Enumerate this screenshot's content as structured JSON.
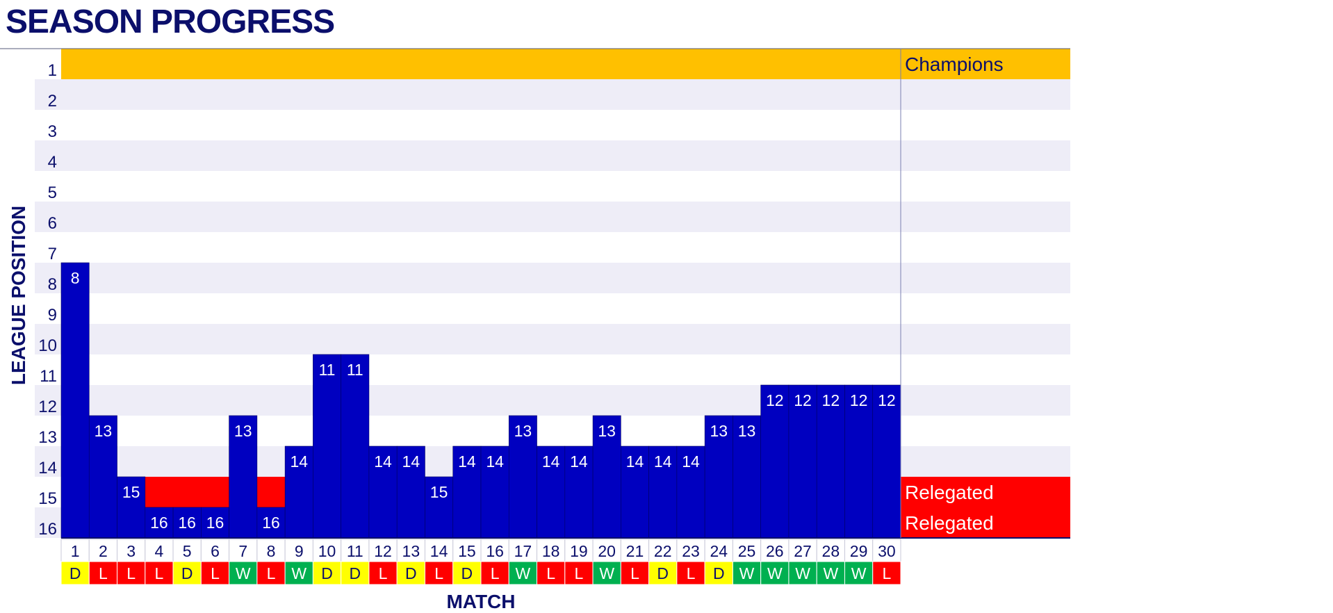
{
  "title": "SEASON PROGRESS",
  "chart_data": {
    "type": "bar",
    "ylabel": "LEAGUE POSITION",
    "xlabel": "MATCH",
    "ylim": [
      16,
      1
    ],
    "y_ticks": [
      "1",
      "2",
      "3",
      "4",
      "5",
      "6",
      "7",
      "8",
      "9",
      "10",
      "11",
      "12",
      "13",
      "14",
      "15",
      "16"
    ],
    "zones": [
      {
        "position": 1,
        "label": "Champions",
        "color": "#ffc000",
        "text_color": "#0b0f6b"
      },
      {
        "position": 15,
        "label": "Relegated",
        "color": "#ff0000",
        "text_color": "#ffffff"
      },
      {
        "position": 16,
        "label": "Relegated",
        "color": "#ff0000",
        "text_color": "#ffffff"
      }
    ],
    "bar_color": "#0000c0",
    "matches": [
      {
        "match": "1",
        "position": 8,
        "result": "D"
      },
      {
        "match": "2",
        "position": 13,
        "result": "L"
      },
      {
        "match": "3",
        "position": 15,
        "result": "L"
      },
      {
        "match": "4",
        "position": 16,
        "result": "L"
      },
      {
        "match": "5",
        "position": 16,
        "result": "D"
      },
      {
        "match": "6",
        "position": 16,
        "result": "L"
      },
      {
        "match": "7",
        "position": 13,
        "result": "W"
      },
      {
        "match": "8",
        "position": 16,
        "result": "L"
      },
      {
        "match": "9",
        "position": 14,
        "result": "W"
      },
      {
        "match": "10",
        "position": 11,
        "result": "D"
      },
      {
        "match": "11",
        "position": 11,
        "result": "D"
      },
      {
        "match": "12",
        "position": 14,
        "result": "L"
      },
      {
        "match": "13",
        "position": 14,
        "result": "D"
      },
      {
        "match": "14",
        "position": 15,
        "result": "L"
      },
      {
        "match": "15",
        "position": 14,
        "result": "D"
      },
      {
        "match": "16",
        "position": 14,
        "result": "L"
      },
      {
        "match": "17",
        "position": 13,
        "result": "W"
      },
      {
        "match": "18",
        "position": 14,
        "result": "L"
      },
      {
        "match": "19",
        "position": 14,
        "result": "L"
      },
      {
        "match": "20",
        "position": 13,
        "result": "W"
      },
      {
        "match": "21",
        "position": 14,
        "result": "L"
      },
      {
        "match": "22",
        "position": 14,
        "result": "D"
      },
      {
        "match": "23",
        "position": 14,
        "result": "L"
      },
      {
        "match": "24",
        "position": 13,
        "result": "D"
      },
      {
        "match": "25",
        "position": 13,
        "result": "W"
      },
      {
        "match": "26",
        "position": 12,
        "result": "W"
      },
      {
        "match": "27",
        "position": 12,
        "result": "W"
      },
      {
        "match": "28",
        "position": 12,
        "result": "W"
      },
      {
        "match": "29",
        "position": 12,
        "result": "W"
      },
      {
        "match": "30",
        "position": 12,
        "result": "L"
      }
    ],
    "result_colors": {
      "W": "#00b050",
      "D": "#ffff00",
      "L": "#ff0000"
    },
    "result_text_colors": {
      "W": "#ffffff",
      "D": "#0b0f6b",
      "L": "#ffffff"
    },
    "grid": "alternating row bands"
  }
}
